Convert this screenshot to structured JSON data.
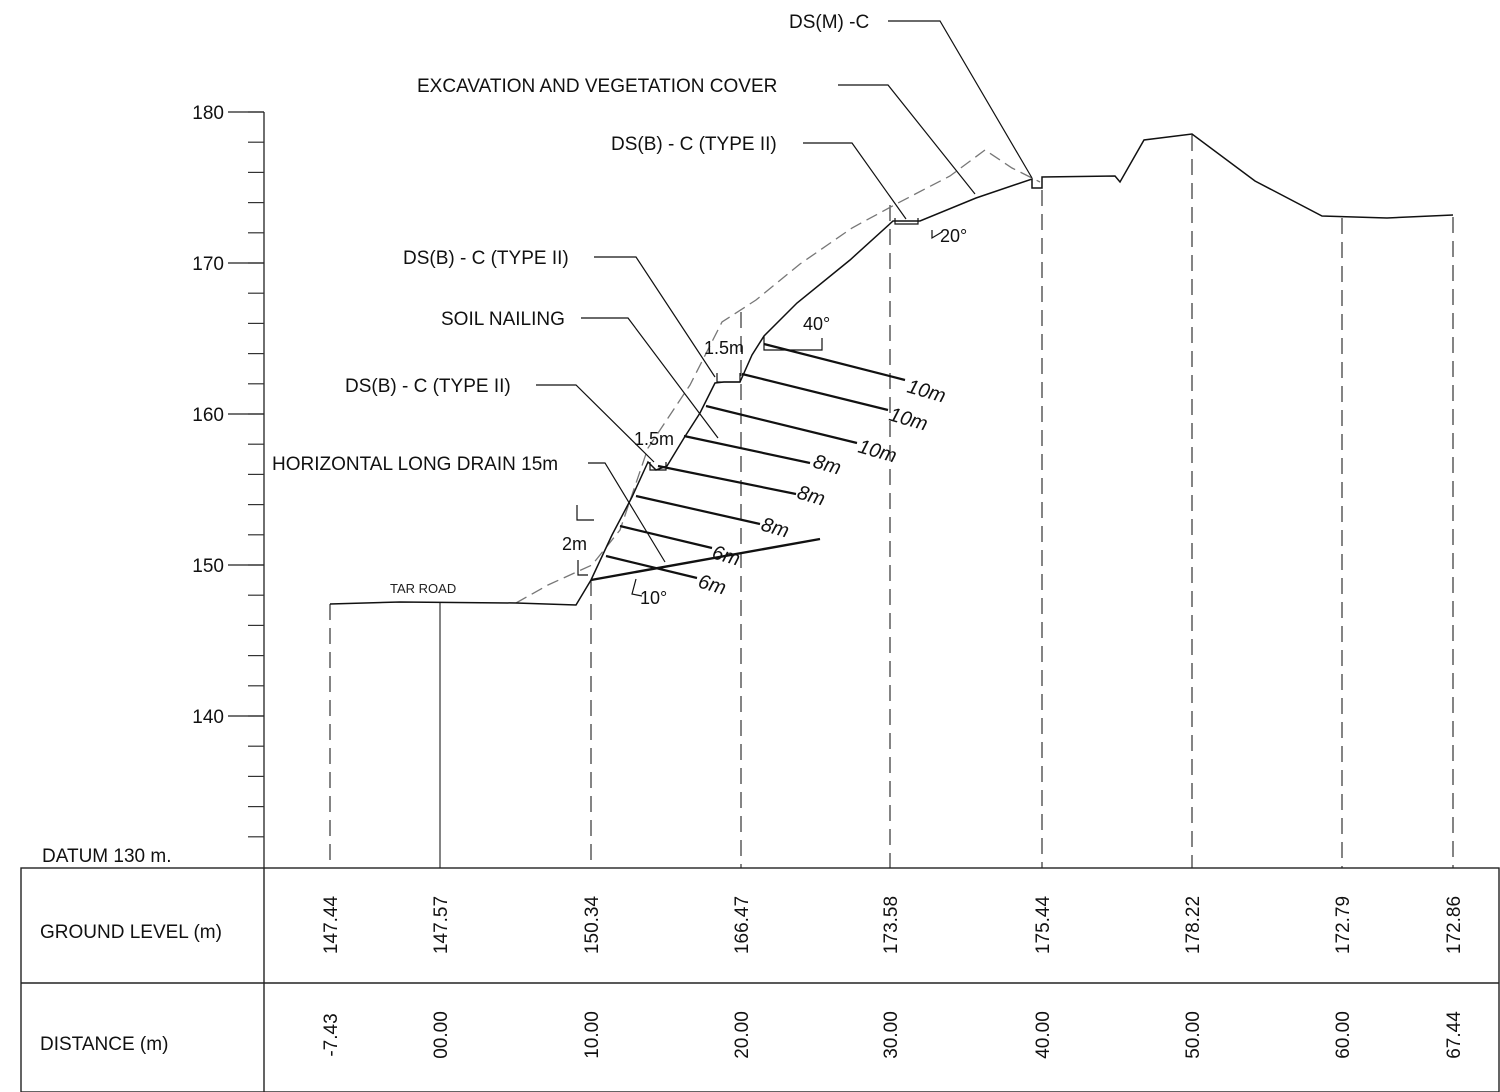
{
  "datum": "DATUM 130 m.",
  "axis": {
    "ticks": [
      "180",
      "170",
      "160",
      "150",
      "140"
    ]
  },
  "road_label": "TAR ROAD",
  "callouts": {
    "ds_m": "DS(M) -C",
    "excavation": "EXCAVATION AND VEGETATION COVER",
    "ds_b_top": "DS(B) - C (TYPE II)",
    "ds_b_mid": "DS(B) - C (TYPE II)",
    "soil_nailing": "SOIL NAILING",
    "ds_b_low": "DS(B) - C (TYPE II)",
    "drain": "HORIZONTAL LONG DRAIN 15m"
  },
  "angles": {
    "a20": "20°",
    "a40": "40°",
    "a10": "10°"
  },
  "dims": {
    "berm_upper": "1.5m",
    "berm_lower": "1.5m",
    "toe": "2m"
  },
  "nails": [
    "10m",
    "10m",
    "10m",
    "8m",
    "8m",
    "8m",
    "6m",
    "6m"
  ],
  "table": {
    "ground_header": "GROUND LEVEL (m)",
    "distance_header": "DISTANCE (m)",
    "ground_levels": [
      "147.44",
      "147.57",
      "150.34",
      "166.47",
      "173.58",
      "175.44",
      "178.22",
      "172.79",
      "172.86"
    ],
    "distances": [
      "-7.43",
      "00.00",
      "10.00",
      "20.00",
      "30.00",
      "40.00",
      "50.00",
      "60.00",
      "67.44"
    ]
  }
}
